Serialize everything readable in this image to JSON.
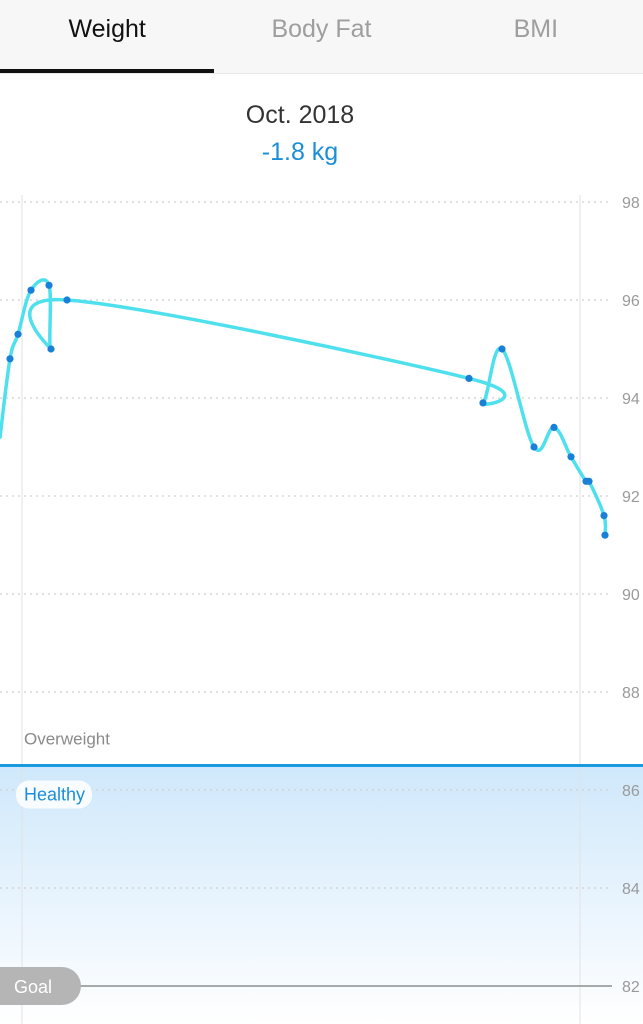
{
  "tabs": [
    {
      "label": "Weight",
      "active": true
    },
    {
      "label": "Body Fat",
      "active": false
    },
    {
      "label": "BMI",
      "active": false
    }
  ],
  "summary": {
    "month": "Oct. 2018",
    "change": "-1.8 kg"
  },
  "colors": {
    "line": "#4fe0ee",
    "point": "#1a7fd6",
    "threshold": "#1a9ae0",
    "healthy_label": "#1a8fd8",
    "goal_fill": "#b5b5b5"
  },
  "chart_data": {
    "type": "line",
    "y_axis": {
      "min": 82,
      "max": 98,
      "ticks": [
        98,
        96,
        94,
        92,
        90,
        88,
        86,
        84,
        82
      ],
      "position": "right"
    },
    "grid": true,
    "zones": [
      {
        "label": "Overweight",
        "above": 86.5
      },
      {
        "label": "Healthy",
        "below": 86.5
      }
    ],
    "threshold_value": 86.5,
    "goal": {
      "label": "Goal",
      "value": 82
    },
    "series": [
      {
        "values": [
          93.2,
          94.8,
          95.3,
          96.2,
          96.3,
          95.0,
          96.0,
          94.4,
          93.9,
          95.0,
          93.0,
          93.4,
          92.8,
          92.3,
          92.3,
          91.6,
          91.2
        ],
        "markers": [
          false,
          true,
          true,
          true,
          true,
          true,
          true,
          true,
          true,
          true,
          true,
          true,
          true,
          true,
          true,
          true,
          true
        ]
      }
    ]
  }
}
